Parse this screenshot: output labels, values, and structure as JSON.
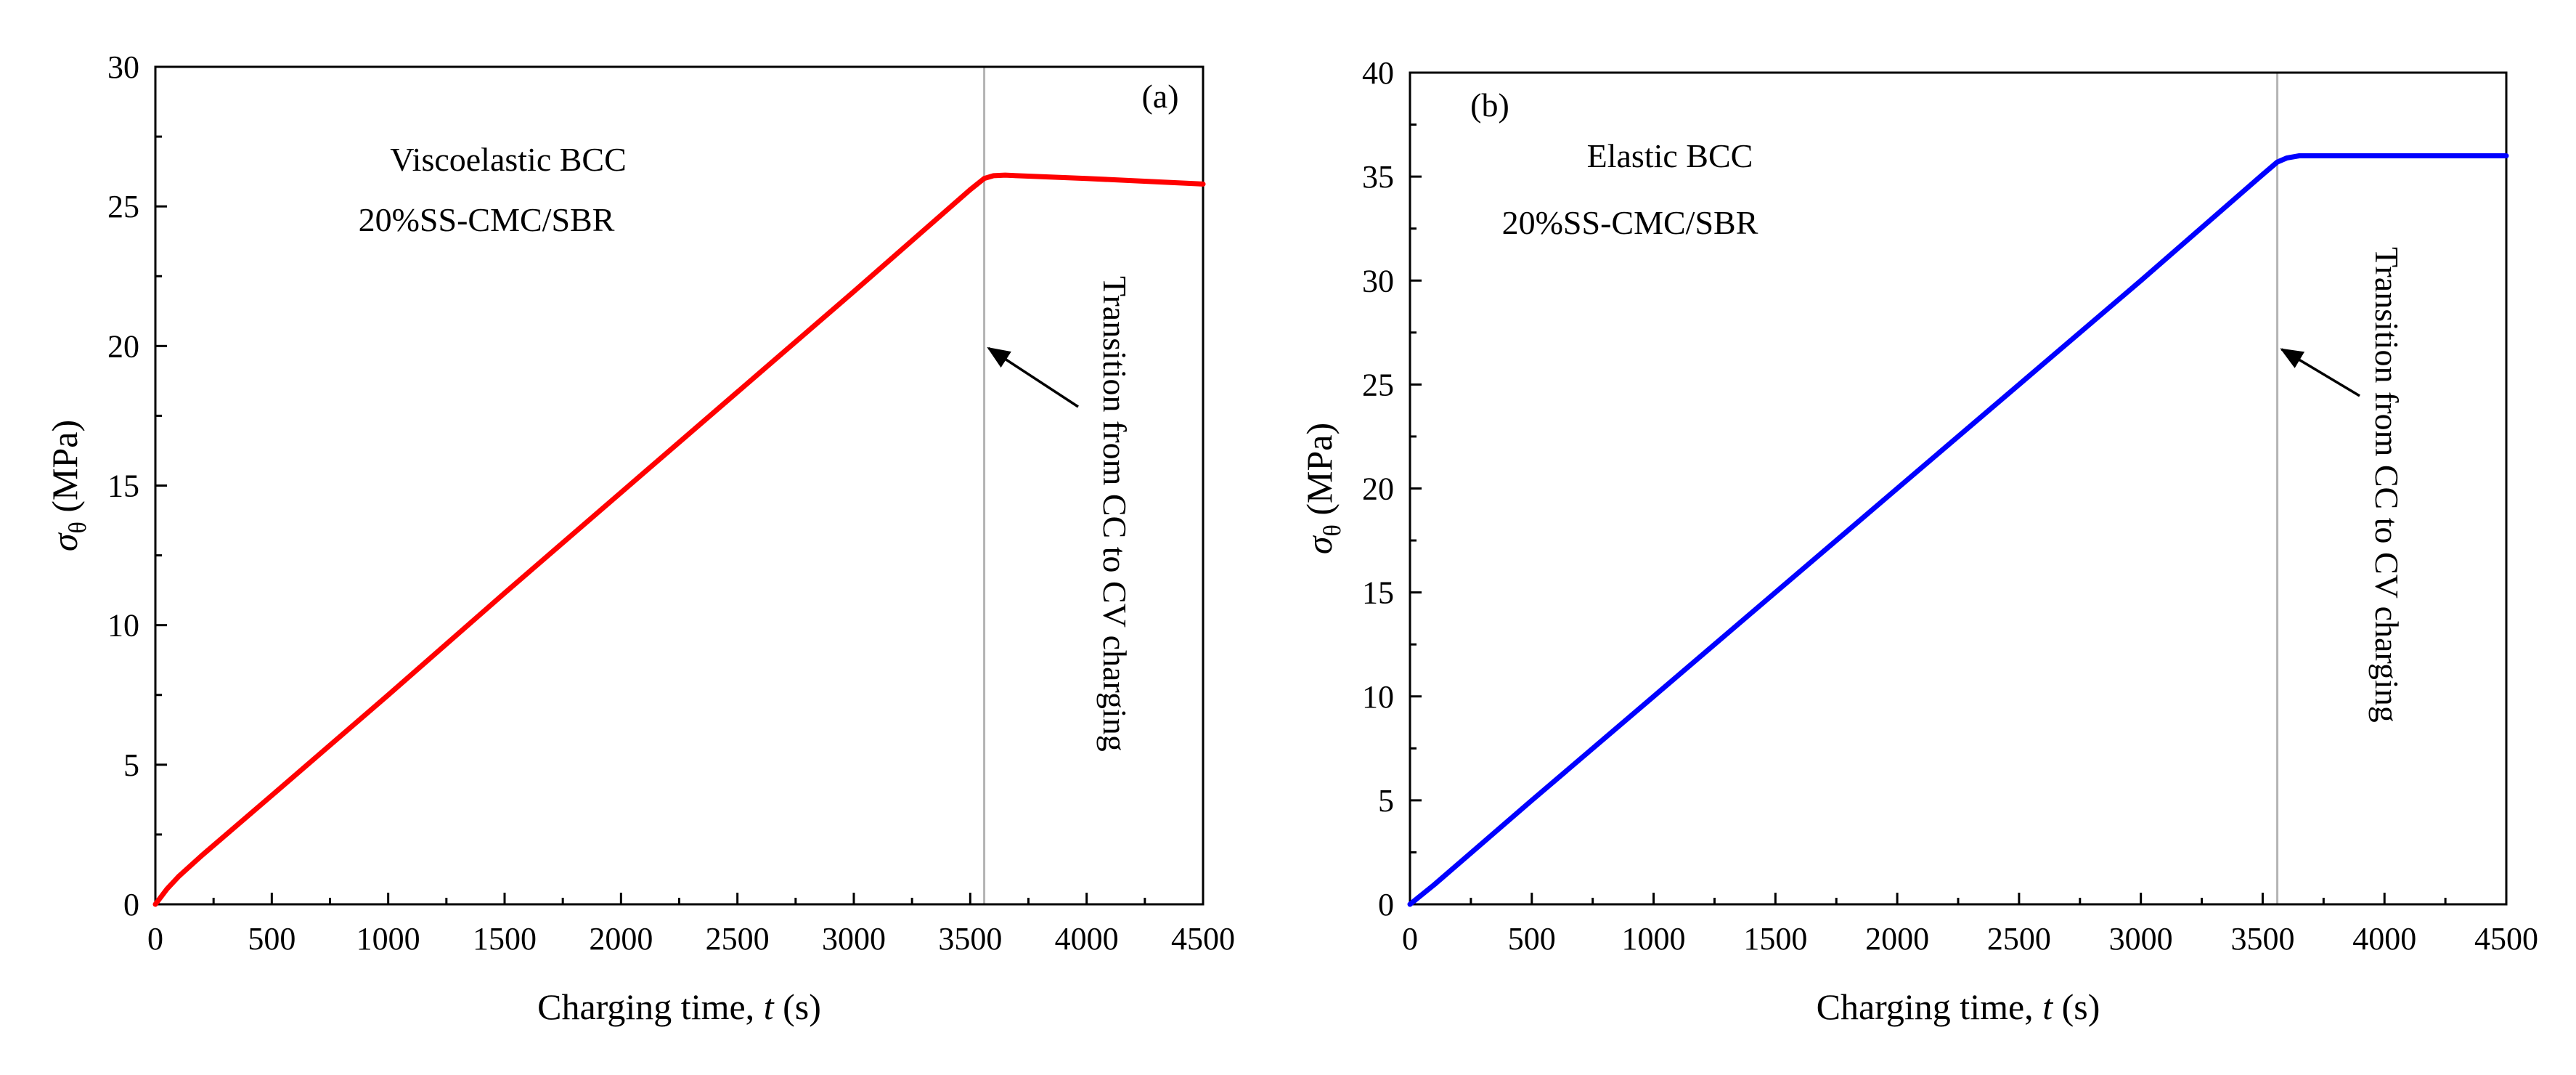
{
  "chart_data": [
    {
      "type": "line",
      "panel_label": "(a)",
      "annotation_lines": [
        "Viscoelastic BCC",
        "20%SS-CMC/SBR"
      ],
      "transition_label": "Transition from CC to CV charging",
      "transition_x": 3560,
      "transition_arrow_target": [
        3560,
        20
      ],
      "xlabel": {
        "pre": "Charging time, ",
        "var": "t",
        "post": " (s)"
      },
      "ylabel": {
        "sym": "σ",
        "sub": "θ",
        "post": " (MPa)"
      },
      "xlim": [
        0,
        4500
      ],
      "ylim": [
        0,
        30
      ],
      "xticks": [
        0,
        500,
        1000,
        1500,
        2000,
        2500,
        3000,
        3500,
        4000,
        4500
      ],
      "yticks": [
        0,
        5,
        10,
        15,
        20,
        25,
        30
      ],
      "series": [
        {
          "name": "Viscoelastic BCC",
          "color": "#ff0000",
          "x": [
            0,
            50,
            100,
            200,
            500,
            1000,
            1500,
            2000,
            2500,
            3000,
            3500,
            3560,
            3600,
            3650,
            3700,
            4000,
            4500
          ],
          "y": [
            0,
            0.55,
            1.0,
            1.75,
            3.9,
            7.5,
            11.15,
            14.75,
            18.35,
            21.95,
            25.6,
            26.0,
            26.1,
            26.12,
            26.1,
            26.0,
            25.8
          ]
        }
      ]
    },
    {
      "type": "line",
      "panel_label": "(b)",
      "annotation_lines": [
        "Elastic BCC",
        "20%SS-CMC/SBR"
      ],
      "transition_label": "Transition from CC to CV charging",
      "transition_x": 3560,
      "transition_arrow_target": [
        3560,
        26.8
      ],
      "xlabel": {
        "pre": "Charging time, ",
        "var": "t",
        "post": " (s)"
      },
      "ylabel": {
        "sym": "σ",
        "sub": "θ",
        "post": " (MPa)"
      },
      "xlim": [
        0,
        4500
      ],
      "ylim": [
        0,
        40
      ],
      "xticks": [
        0,
        500,
        1000,
        1500,
        2000,
        2500,
        3000,
        3500,
        4000,
        4500
      ],
      "yticks": [
        0,
        5,
        10,
        15,
        20,
        25,
        30,
        35,
        40
      ],
      "series": [
        {
          "name": "Elastic BCC",
          "color": "#0000ff",
          "x": [
            0,
            100,
            500,
            1000,
            1500,
            2000,
            2500,
            3000,
            3500,
            3560,
            3600,
            3650,
            3700,
            3800,
            4000,
            4500
          ],
          "y": [
            0,
            0.95,
            5.0,
            10.0,
            15.0,
            20.0,
            25.0,
            30.0,
            35.1,
            35.7,
            35.9,
            36.0,
            36.0,
            36.0,
            36.0,
            36.0
          ]
        }
      ]
    }
  ]
}
